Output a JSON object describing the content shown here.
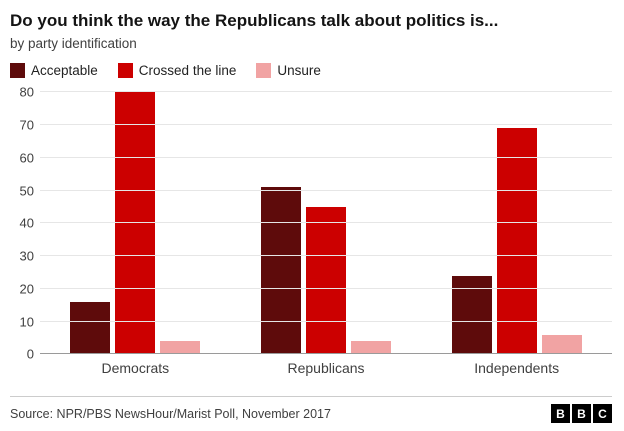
{
  "chart_data": {
    "type": "bar",
    "title": "Do you think the way the Republicans talk about politics is...",
    "subtitle": "by party identification",
    "categories": [
      "Democrats",
      "Republicans",
      "Independents"
    ],
    "series": [
      {
        "name": "Acceptable",
        "color": "#5e0b0b",
        "values": [
          16,
          51,
          24
        ]
      },
      {
        "name": "Crossed the line",
        "color": "#cc0000",
        "values": [
          80,
          45,
          69
        ]
      },
      {
        "name": "Unsure",
        "color": "#f1a3a3",
        "values": [
          4,
          4,
          6
        ]
      }
    ],
    "xlabel": "",
    "ylabel": "",
    "ylim": [
      0,
      80
    ],
    "yticks": [
      0,
      10,
      20,
      30,
      40,
      50,
      60,
      70,
      80
    ],
    "grid": true,
    "legend_position": "top"
  },
  "footer": {
    "source": "Source: NPR/PBS NewsHour/Marist Poll, November 2017",
    "logo_letters": [
      "B",
      "B",
      "C"
    ]
  }
}
